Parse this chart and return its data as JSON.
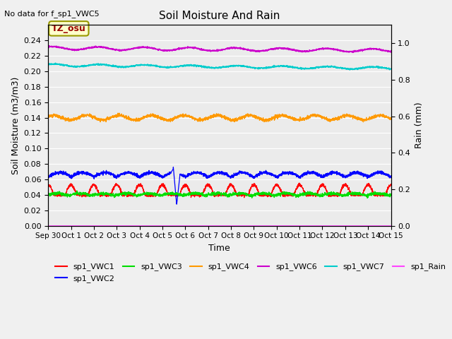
{
  "title": "Soil Moisture And Rain",
  "top_left_text": "No data for f_sp1_VWC5",
  "xlabel": "Time",
  "ylabel_left": "Soil Moisture (m3/m3)",
  "ylabel_right": "Rain (mm)",
  "annotation_text": "TZ_osu",
  "ylim_left": [
    0.0,
    0.26
  ],
  "ylim_right": [
    0.0,
    1.1
  ],
  "yticks_left": [
    0.0,
    0.02,
    0.04,
    0.06,
    0.08,
    0.1,
    0.12,
    0.14,
    0.16,
    0.18,
    0.2,
    0.22,
    0.24
  ],
  "yticks_right": [
    0.0,
    0.2,
    0.4,
    0.6,
    0.8,
    1.0
  ],
  "n_points": 3000,
  "background_color": "#ebebeb",
  "grid_color": "#ffffff",
  "series": {
    "sp1_VWC1": {
      "color": "#ff0000",
      "base": 0.04,
      "amp": 0.013,
      "noise": 0.001
    },
    "sp1_VWC2": {
      "color": "#0000ff",
      "base": 0.063,
      "amp": 0.006,
      "noise": 0.001
    },
    "sp1_VWC3": {
      "color": "#00dd00",
      "base": 0.039,
      "amp": 0.003,
      "noise": 0.001
    },
    "sp1_VWC4": {
      "color": "#ff9900",
      "base": 0.14,
      "amp": 0.003,
      "noise": 0.001
    },
    "sp1_VWC6": {
      "color": "#cc00cc",
      "base": 0.23,
      "amp": 0.002,
      "noise": 0.0005
    },
    "sp1_VWC7": {
      "color": "#00cccc",
      "base": 0.208,
      "amp": 0.0015,
      "noise": 0.0005
    },
    "sp1_Rain": {
      "color": "#ff44ff",
      "base": 0.0,
      "noise": 0.0
    }
  },
  "xtick_labels": [
    "Sep 30",
    "Oct 1",
    "Oct 2",
    "Oct 3",
    "Oct 4",
    "Oct 5",
    "Oct 6",
    "Oct 7",
    "Oct 8",
    "Oct 9",
    "Oct 10",
    "Oct 11",
    "Oct 12",
    "Oct 13",
    "Oct 14",
    "Oct 15"
  ],
  "xtick_days": [
    0,
    1,
    2,
    3,
    4,
    5,
    6,
    7,
    8,
    9,
    10,
    11,
    12,
    13,
    14,
    15
  ],
  "figsize": [
    6.4,
    4.8
  ],
  "dpi": 100
}
